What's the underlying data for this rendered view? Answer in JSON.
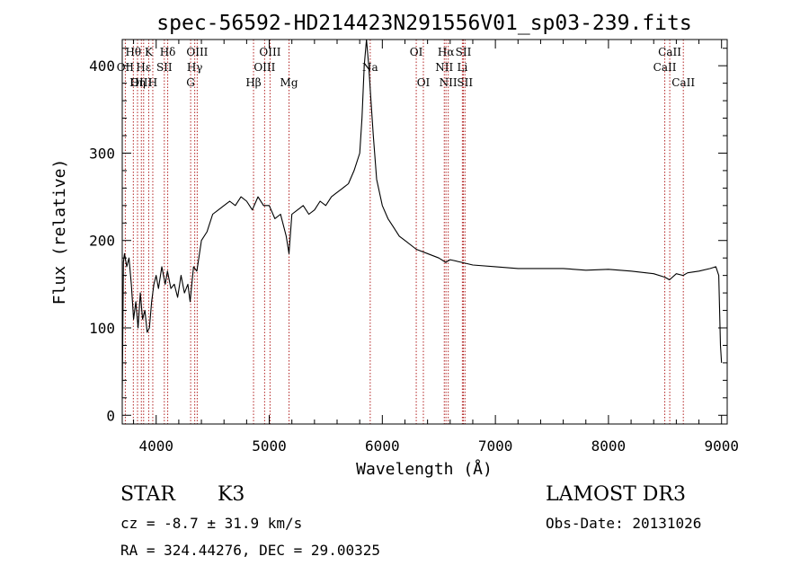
{
  "chart_data": {
    "type": "line",
    "title": "spec-56592-HD214423N291556V01_sp03-239.fits",
    "xlabel": "Wavelength (Å)",
    "ylabel": "Flux (relative)",
    "xlim": [
      3700,
      9050
    ],
    "ylim": [
      -10,
      430
    ],
    "x_ticks": [
      4000,
      5000,
      6000,
      7000,
      8000,
      9000
    ],
    "y_ticks": [
      0,
      100,
      200,
      300,
      400
    ],
    "grid": false,
    "series": [
      {
        "x": [
          3700,
          3710,
          3720,
          3740,
          3760,
          3780,
          3800,
          3820,
          3840,
          3860,
          3880,
          3900,
          3920,
          3940,
          3960,
          3980,
          4000,
          4020,
          4050,
          4080,
          4100,
          4130,
          4160,
          4190,
          4220,
          4250,
          4280,
          4300,
          4330,
          4360,
          4400,
          4450,
          4500,
          4550,
          4600,
          4650,
          4700,
          4750,
          4800,
          4850,
          4900,
          4950,
          5000,
          5050,
          5100,
          5150,
          5175,
          5200,
          5250,
          5300,
          5350,
          5400,
          5450,
          5500,
          5550,
          5600,
          5650,
          5700,
          5750,
          5800,
          5820,
          5840,
          5860,
          5880,
          5900,
          5920,
          5950,
          6000,
          6050,
          6100,
          6150,
          6200,
          6300,
          6400,
          6500,
          6560,
          6600,
          6700,
          6800,
          7000,
          7200,
          7400,
          7600,
          7800,
          8000,
          8200,
          8400,
          8500,
          8540,
          8600,
          8660,
          8700,
          8800,
          8900,
          8950,
          8975,
          8990,
          9000
        ],
        "y": [
          20,
          175,
          185,
          170,
          180,
          150,
          110,
          130,
          100,
          140,
          110,
          120,
          95,
          100,
          130,
          150,
          160,
          145,
          170,
          150,
          165,
          145,
          150,
          135,
          160,
          140,
          150,
          130,
          170,
          165,
          200,
          210,
          230,
          235,
          240,
          245,
          240,
          250,
          245,
          235,
          250,
          240,
          240,
          225,
          230,
          205,
          185,
          230,
          235,
          240,
          230,
          235,
          245,
          240,
          250,
          255,
          260,
          265,
          280,
          300,
          340,
          400,
          430,
          400,
          360,
          320,
          270,
          240,
          225,
          215,
          205,
          200,
          190,
          185,
          180,
          175,
          178,
          175,
          172,
          170,
          168,
          168,
          168,
          166,
          167,
          165,
          162,
          158,
          155,
          162,
          160,
          163,
          165,
          168,
          170,
          160,
          80,
          60
        ]
      }
    ],
    "line_labels": [
      {
        "text": "Hθ",
        "x": 3798,
        "row": 0
      },
      {
        "text": "OII",
        "x": 3727,
        "row": 1
      },
      {
        "text": "OIII",
        "x": 3869,
        "row": 2
      },
      {
        "text": "Hε",
        "x": 3889,
        "row": 1
      },
      {
        "text": "Hη",
        "x": 3835,
        "row": 2
      },
      {
        "text": "K",
        "x": 3934,
        "row": 0
      },
      {
        "text": "H",
        "x": 3970,
        "row": 2
      },
      {
        "text": "SII",
        "x": 4072,
        "row": 1
      },
      {
        "text": "Hδ",
        "x": 4102,
        "row": 0
      },
      {
        "text": "OIII",
        "x": 4363,
        "row": 0
      },
      {
        "text": "Hγ",
        "x": 4341,
        "row": 1
      },
      {
        "text": "G",
        "x": 4305,
        "row": 2
      },
      {
        "text": "Hβ",
        "x": 4861,
        "row": 2
      },
      {
        "text": "OIII",
        "x": 5007,
        "row": 0
      },
      {
        "text": "OIII",
        "x": 4959,
        "row": 1
      },
      {
        "text": "Mg",
        "x": 5175,
        "row": 2
      },
      {
        "text": "Na",
        "x": 5893,
        "row": 1
      },
      {
        "text": "OI",
        "x": 6300,
        "row": 0
      },
      {
        "text": "OI",
        "x": 6363,
        "row": 2
      },
      {
        "text": "Hα",
        "x": 6563,
        "row": 0
      },
      {
        "text": "SII",
        "x": 6717,
        "row": 0
      },
      {
        "text": "NII",
        "x": 6548,
        "row": 1
      },
      {
        "text": "Li",
        "x": 6708,
        "row": 1
      },
      {
        "text": "NII",
        "x": 6583,
        "row": 2
      },
      {
        "text": "SII",
        "x": 6731,
        "row": 2
      },
      {
        "text": "CaII",
        "x": 8498,
        "row": 1
      },
      {
        "text": "CaII",
        "x": 8542,
        "row": 0
      },
      {
        "text": "CaII",
        "x": 8662,
        "row": 2
      }
    ]
  },
  "info": {
    "object_type": "STAR",
    "subclass": "K3",
    "survey": "LAMOST DR3",
    "velocity": "cz = -8.7 ± 31.9 km/s",
    "obs_date": "Obs-Date: 20131026",
    "coordinates": "RA = 324.44276, DEC =  29.00325"
  }
}
